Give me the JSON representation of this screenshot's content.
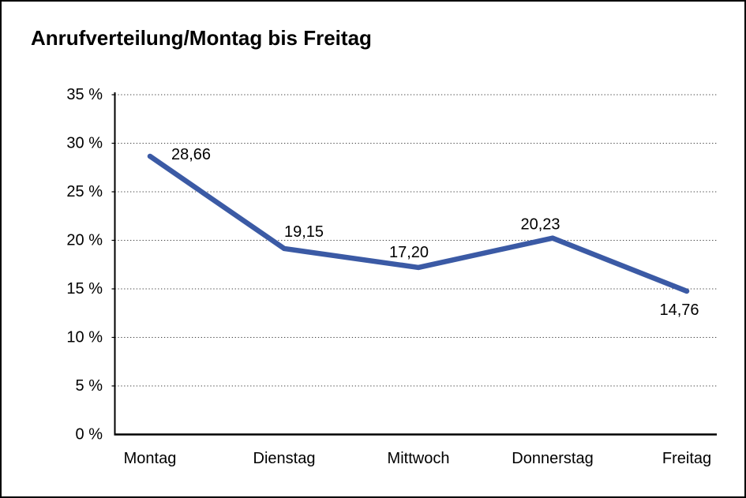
{
  "chart_data": {
    "type": "line",
    "title": "Anrufverteilung/Montag bis Freitag",
    "categories": [
      "Montag",
      "Dienstag",
      "Mittwoch",
      "Donnerstag",
      "Freitag"
    ],
    "series": [
      {
        "name": "Anrufverteilung",
        "values": [
          28.66,
          19.15,
          17.2,
          20.23,
          14.76
        ]
      }
    ],
    "point_labels": [
      "28,66",
      "19,15",
      "17,20",
      "20,23",
      "14,76"
    ],
    "yticks": [
      0,
      5,
      10,
      15,
      20,
      25,
      30,
      35
    ],
    "ytick_labels": [
      "0 %",
      "5 %",
      "10 %",
      "15 %",
      "20 %",
      "25 %",
      "30 %",
      "35 %"
    ],
    "ylim": [
      0,
      35
    ],
    "xlabel": "",
    "ylabel": "",
    "legend": "none",
    "grid": "horizontal-dotted",
    "colors": {
      "line": "#3B5AA5",
      "axis": "#000000",
      "gridline": "#404040",
      "text": "#000000",
      "background": "#ffffff",
      "border": "#000000"
    }
  }
}
